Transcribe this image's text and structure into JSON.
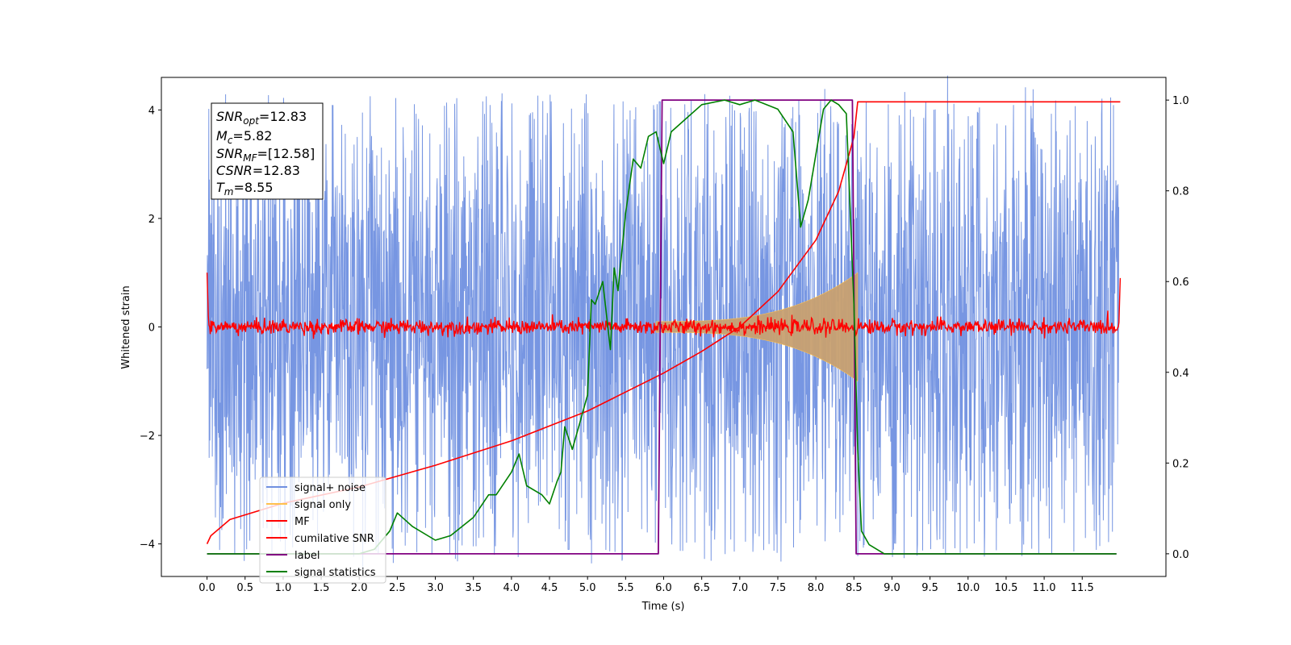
{
  "chart_data": {
    "type": "line",
    "xlabel": "Time (s)",
    "ylabel": "Whitened strain",
    "xlim": [
      -0.6,
      12.6
    ],
    "ylim": [
      -4.6,
      4.6
    ],
    "y2lim": [
      -0.05,
      1.05
    ],
    "x_ticks": [
      "0.0",
      "0.5",
      "1.0",
      "1.5",
      "2.0",
      "2.5",
      "3.0",
      "3.5",
      "4.0",
      "4.5",
      "5.0",
      "5.5",
      "6.0",
      "6.5",
      "7.0",
      "7.5",
      "8.0",
      "8.5",
      "9.0",
      "9.5",
      "10.0",
      "10.5",
      "11.0",
      "11.5"
    ],
    "y_ticks": [
      "−4",
      "−2",
      "0",
      "2",
      "4"
    ],
    "y2_ticks": [
      "0.0",
      "0.2",
      "0.4",
      "0.6",
      "0.8",
      "1.0"
    ],
    "legend_position": "lower-left",
    "annotation": {
      "snr_opt": {
        "base": "SNR",
        "sub": "opt",
        "value": "=12.83"
      },
      "mc": {
        "base": "M",
        "sub": "c",
        "value": "=5.82"
      },
      "snr_mf": {
        "base": "SNR",
        "sub": "MF",
        "value": "=[12.58]"
      },
      "csnr": {
        "base": "CSNR",
        "sub": "",
        "value": "=12.83"
      },
      "tm": {
        "base": "T",
        "sub": "m",
        "value": "=8.55"
      }
    },
    "params": {
      "signal_start": 5.9,
      "merger_time": 8.55,
      "t_end": 12.0
    },
    "series": [
      {
        "name": "signal+ noise",
        "color": "#7090e0",
        "axis": "left",
        "description": "whitened noise with amplitude about 2.3 std"
      },
      {
        "name": "signal only",
        "color": "#ffc04d",
        "axis": "left",
        "description": "chirp amplitude from 0.1 at 5.9 s rising to 1.0 at 8.55 s"
      },
      {
        "name": "MF",
        "color": "#ff0000",
        "axis": "left",
        "description": "matched filter output near 0 with small fluctuations"
      },
      {
        "name": "cumilative SNR",
        "color": "#ff0000",
        "axis": "left",
        "x": [
          0.0,
          0.05,
          0.3,
          1.0,
          2.0,
          3.0,
          4.0,
          5.0,
          6.0,
          6.5,
          7.0,
          7.5,
          8.0,
          8.3,
          8.5,
          8.55,
          12.0
        ],
        "y": [
          -4.0,
          -3.85,
          -3.55,
          -3.25,
          -2.95,
          -2.55,
          -2.1,
          -1.55,
          -0.85,
          -0.45,
          0.0,
          0.65,
          1.6,
          2.5,
          3.5,
          4.15,
          4.15
        ]
      },
      {
        "name": "label",
        "color": "#800080",
        "axis": "right",
        "x": [
          0.0,
          5.93,
          5.98,
          8.48,
          8.53,
          11.95
        ],
        "y": [
          0.0,
          0.0,
          1.0,
          1.0,
          0.0,
          0.0
        ]
      },
      {
        "name": "signal statistics",
        "color": "#008000",
        "axis": "right",
        "x": [
          0.0,
          1.0,
          2.0,
          2.2,
          2.4,
          2.5,
          2.7,
          3.0,
          3.2,
          3.5,
          3.7,
          3.8,
          4.0,
          4.1,
          4.2,
          4.4,
          4.5,
          4.6,
          4.65,
          4.7,
          4.8,
          4.9,
          5.0,
          5.05,
          5.1,
          5.2,
          5.3,
          5.35,
          5.4,
          5.5,
          5.6,
          5.7,
          5.8,
          5.9,
          6.0,
          6.1,
          6.3,
          6.5,
          6.8,
          7.0,
          7.2,
          7.5,
          7.7,
          7.8,
          7.9,
          8.0,
          8.1,
          8.2,
          8.3,
          8.4,
          8.5,
          8.55,
          8.6,
          8.7,
          8.9,
          9.5,
          11.95
        ],
        "y": [
          0.0,
          0.0,
          0.0,
          0.01,
          0.05,
          0.09,
          0.06,
          0.03,
          0.04,
          0.08,
          0.13,
          0.13,
          0.18,
          0.22,
          0.15,
          0.13,
          0.11,
          0.16,
          0.18,
          0.28,
          0.23,
          0.29,
          0.35,
          0.56,
          0.55,
          0.6,
          0.45,
          0.63,
          0.58,
          0.75,
          0.87,
          0.85,
          0.92,
          0.93,
          0.86,
          0.93,
          0.96,
          0.99,
          1.0,
          0.99,
          1.0,
          0.98,
          0.93,
          0.72,
          0.78,
          0.88,
          0.98,
          1.0,
          0.99,
          0.97,
          0.55,
          0.23,
          0.05,
          0.02,
          0.0,
          0.0,
          0.0
        ]
      }
    ]
  }
}
